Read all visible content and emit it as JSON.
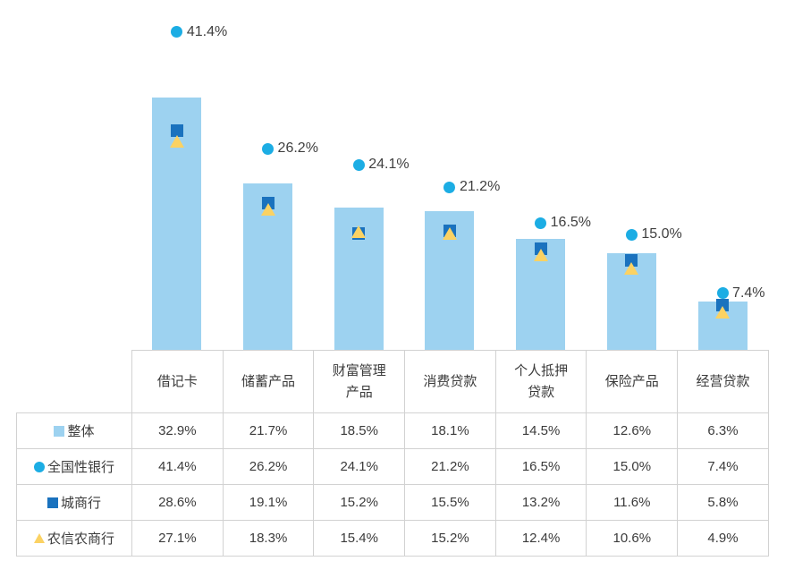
{
  "chart_data": {
    "type": "bar",
    "categories": [
      "借记卡",
      "储蓄产品",
      "财富管理产品",
      "消费贷款",
      "个人抵押贷款",
      "保险产品",
      "经营贷款"
    ],
    "series": [
      {
        "name": "整体",
        "marker": "bar",
        "color": "#9DD2F0",
        "values": [
          32.9,
          21.7,
          18.5,
          18.1,
          14.5,
          12.6,
          6.3
        ]
      },
      {
        "name": "全国性银行",
        "marker": "circle",
        "color": "#1CADE4",
        "values": [
          41.4,
          26.2,
          24.1,
          21.2,
          16.5,
          15.0,
          7.4
        ],
        "point_labels": [
          "41.4%",
          "26.2%",
          "24.1%",
          "21.2%",
          "16.5%",
          "15.0%",
          "7.4%"
        ]
      },
      {
        "name": "城商行",
        "marker": "square",
        "color": "#1A72BE",
        "values": [
          28.6,
          19.1,
          15.2,
          15.5,
          13.2,
          11.6,
          5.8
        ]
      },
      {
        "name": "农信农商行",
        "marker": "triangle",
        "color": "#FBD263",
        "values": [
          27.1,
          18.3,
          15.4,
          15.2,
          12.4,
          10.6,
          4.9
        ]
      }
    ],
    "value_suffix": "%",
    "axes_visible": false,
    "grid": false,
    "data_labels_series": "全国性银行",
    "legend_position": "table-rows-left",
    "label_color": "#404040"
  },
  "table": {
    "corner_label": "",
    "columns": [
      "借记卡",
      "储蓄产品",
      "财富管理\n产品",
      "消费贷款",
      "个人抵押\n贷款",
      "保险产品",
      "经营贷款"
    ],
    "rows": [
      {
        "label": "整体",
        "cells": [
          "32.9%",
          "21.7%",
          "18.5%",
          "18.1%",
          "14.5%",
          "12.6%",
          "6.3%"
        ]
      },
      {
        "label": "全国性银行",
        "cells": [
          "41.4%",
          "26.2%",
          "24.1%",
          "21.2%",
          "16.5%",
          "15.0%",
          "7.4%"
        ]
      },
      {
        "label": "城商行",
        "cells": [
          "28.6%",
          "19.1%",
          "15.2%",
          "15.5%",
          "13.2%",
          "11.6%",
          "5.8%"
        ]
      },
      {
        "label": "农信农商行",
        "cells": [
          "27.1%",
          "18.3%",
          "15.4%",
          "15.2%",
          "12.4%",
          "10.6%",
          "4.9%"
        ]
      }
    ]
  }
}
